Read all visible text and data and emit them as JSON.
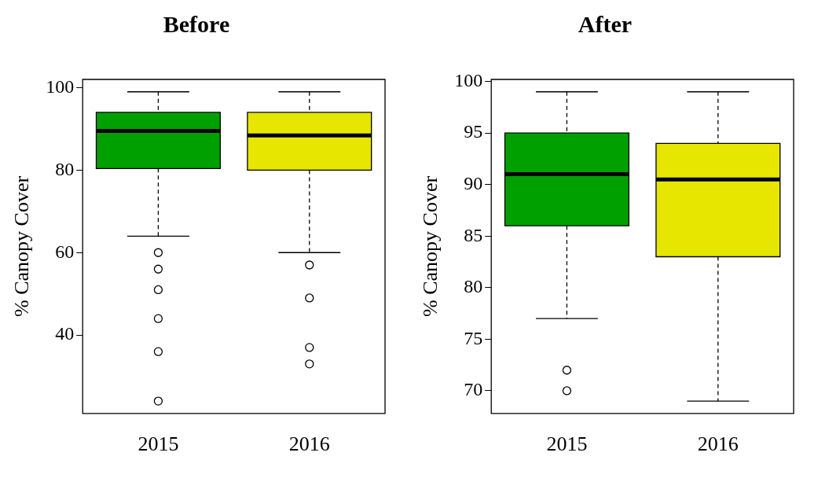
{
  "chart_data": [
    {
      "type": "box",
      "title": "Before",
      "ylabel": "% Canopy Cover",
      "categories": [
        "2015",
        "2016"
      ],
      "colors": [
        "#00a000",
        "#e6e600"
      ],
      "boxes": [
        {
          "low": 64,
          "q1": 80.4,
          "median": 89.5,
          "q3": 94,
          "high": 99,
          "outliers": [
            60,
            56,
            51,
            44,
            36,
            24
          ]
        },
        {
          "low": 60,
          "q1": 80,
          "median": 88.4,
          "q3": 94,
          "high": 99,
          "outliers": [
            57,
            49,
            37,
            33
          ]
        }
      ],
      "ylim": [
        21,
        102
      ],
      "yticks": [
        40,
        60,
        80,
        100
      ]
    },
    {
      "type": "box",
      "title": "After",
      "ylabel": "% Canopy Cover",
      "categories": [
        "2015",
        "2016"
      ],
      "colors": [
        "#00a000",
        "#e6e600"
      ],
      "boxes": [
        {
          "low": 77,
          "q1": 86,
          "median": 91,
          "q3": 95,
          "high": 99,
          "outliers": [
            72,
            70
          ]
        },
        {
          "low": 69,
          "q1": 83,
          "median": 90.5,
          "q3": 94,
          "high": 99
        }
      ],
      "ylim": [
        67.8,
        100.2
      ],
      "yticks": [
        70,
        75,
        80,
        85,
        90,
        95,
        100
      ]
    }
  ]
}
